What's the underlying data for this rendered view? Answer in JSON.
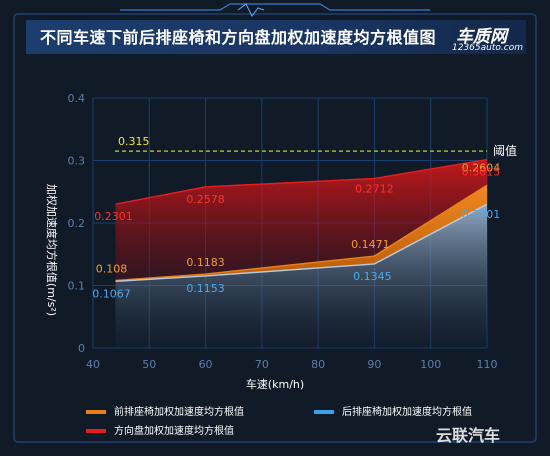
{
  "header": {
    "title": "不同车速下前后排座椅和方向盘加权加速度均方根值图",
    "logo_main": "车质网",
    "logo_sub": "12365auto.com"
  },
  "watermark": "云联汽车",
  "colors": {
    "background": "#111a27",
    "grid": "#1b3f72",
    "front": "#e8801a",
    "rear": "#3aa0e8",
    "steering": "#e51e1e",
    "threshold": "#b9d53a"
  },
  "chart_data": {
    "type": "area",
    "xlabel": "车速(km/h)",
    "ylabel": "加权加速度均方根值(m/s²)",
    "xlim": [
      40,
      110
    ],
    "ylim": [
      0,
      0.4
    ],
    "x_ticks": [
      "40",
      "50",
      "60",
      "70",
      "80",
      "90",
      "100",
      "110"
    ],
    "y_ticks": [
      "0",
      "0.1",
      "0.2",
      "0.3",
      "0.4"
    ],
    "grid": true,
    "threshold": {
      "value": 0.315,
      "label": "0.315",
      "name": "阈值"
    },
    "series": [
      {
        "name": "前排座椅加权加速度均方根值",
        "key": "front",
        "x": [
          44,
          60,
          90,
          110
        ],
        "values": [
          0.108,
          0.1183,
          0.1471,
          0.2604
        ],
        "labels": [
          "0.108",
          "0.1183",
          "0.1471",
          "0.2604"
        ]
      },
      {
        "name": "后排座椅加权加速度均方根值",
        "key": "rear",
        "x": [
          44,
          60,
          90,
          110
        ],
        "values": [
          0.1067,
          0.1153,
          0.1345,
          0.2301
        ],
        "labels": [
          "0.1067",
          "0.1153",
          "0.1345",
          "0.2301"
        ]
      },
      {
        "name": "方向盘加权加速度均方根值",
        "key": "steering",
        "x": [
          44,
          60,
          90,
          110
        ],
        "values": [
          0.2301,
          0.2578,
          0.2712,
          0.3015
        ],
        "labels": [
          "0.2301",
          "0.2578",
          "0.2712",
          "0.3015"
        ]
      }
    ]
  }
}
